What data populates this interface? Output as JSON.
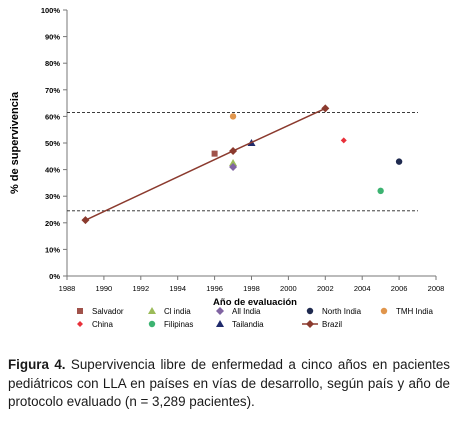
{
  "chart_data": {
    "type": "scatter",
    "ylabel": "% de supervivencia",
    "xlabel": "Año de evaluación",
    "xlim": [
      1988,
      2008
    ],
    "ylim": [
      0,
      100
    ],
    "x_ticks": [
      "1988",
      "1990",
      "1992",
      "1994",
      "1996",
      "1998",
      "2000",
      "2002",
      "2004",
      "2006",
      "2008"
    ],
    "y_ticks": [
      "0%",
      "10%",
      "20%",
      "30%",
      "40%",
      "50%",
      "60%",
      "70%",
      "80%",
      "90%",
      "100%"
    ],
    "grid": false,
    "legend_position": "bottom",
    "reference_lines": [
      {
        "style": "dashed",
        "y": 61.5
      },
      {
        "style": "dashed",
        "y": 24.5
      }
    ],
    "series": [
      {
        "name": "Salvador",
        "marker": "square",
        "color": "#a0524a",
        "points": [
          [
            1996,
            46
          ]
        ]
      },
      {
        "name": "Cl india",
        "marker": "triangle",
        "color": "#9bbb59",
        "points": [
          [
            1997,
            42.5
          ]
        ]
      },
      {
        "name": "All  India",
        "marker": "diamond",
        "color": "#8064a2",
        "points": [
          [
            1997,
            41
          ]
        ]
      },
      {
        "name": "North India",
        "marker": "circle",
        "color": "#1f2a4f",
        "points": [
          [
            2006,
            43
          ]
        ]
      },
      {
        "name": "TMH India",
        "marker": "circle",
        "color": "#e0954b",
        "points": [
          [
            1997,
            60
          ]
        ]
      },
      {
        "name": "China",
        "marker": "diamond-small",
        "color": "#e8303a",
        "points": [
          [
            2003,
            51
          ]
        ]
      },
      {
        "name": "Filipinas",
        "marker": "circle",
        "color": "#3cb371",
        "points": [
          [
            2005,
            32
          ]
        ]
      },
      {
        "name": "Tailandia",
        "marker": "triangle",
        "color": "#1f2a6b",
        "points": [
          [
            1998,
            50
          ]
        ]
      },
      {
        "name": "Brazil",
        "marker": "diamond-line",
        "color": "#8b3a2e",
        "points": [
          [
            1989,
            21
          ],
          [
            1997,
            47
          ],
          [
            2002,
            63
          ]
        ]
      }
    ]
  },
  "caption": {
    "label": "Figura 4.",
    "text": " Supervivencia libre de enfermedad a cinco años en pacientes pediátricos con LLA en países en vías de desarrollo, según país y año de protocolo evaluado (n = 3,289 pacientes)."
  }
}
